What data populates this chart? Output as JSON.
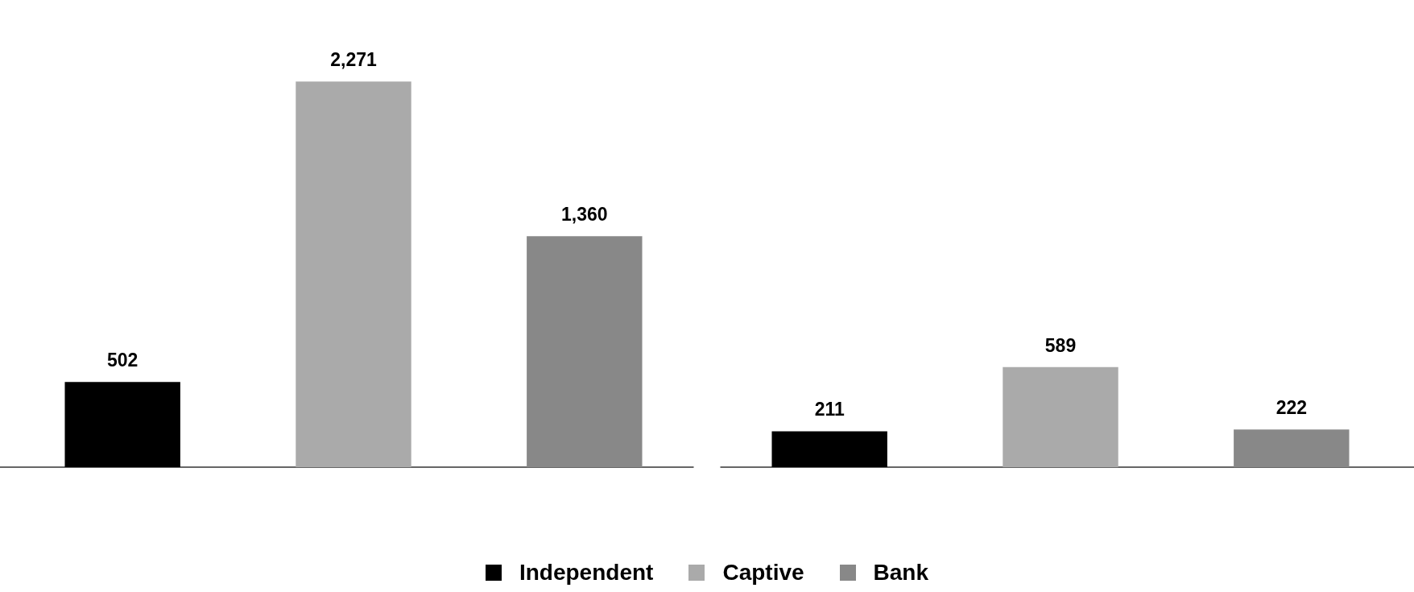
{
  "chart_data": {
    "type": "bar",
    "categories": [
      null,
      null
    ],
    "legend": "bottom",
    "series": [
      {
        "name": "Independent",
        "color": "#000000",
        "values": [
          502,
          211
        ],
        "value_labels": [
          "502",
          "211"
        ]
      },
      {
        "name": "Captive",
        "color": "#aaaaaa",
        "values": [
          2271,
          589
        ],
        "value_labels": [
          "2,271",
          "589"
        ]
      },
      {
        "name": "Bank",
        "color": "#888888",
        "values": [
          1360,
          222
        ],
        "value_labels": [
          "1,360",
          "222"
        ]
      }
    ]
  }
}
